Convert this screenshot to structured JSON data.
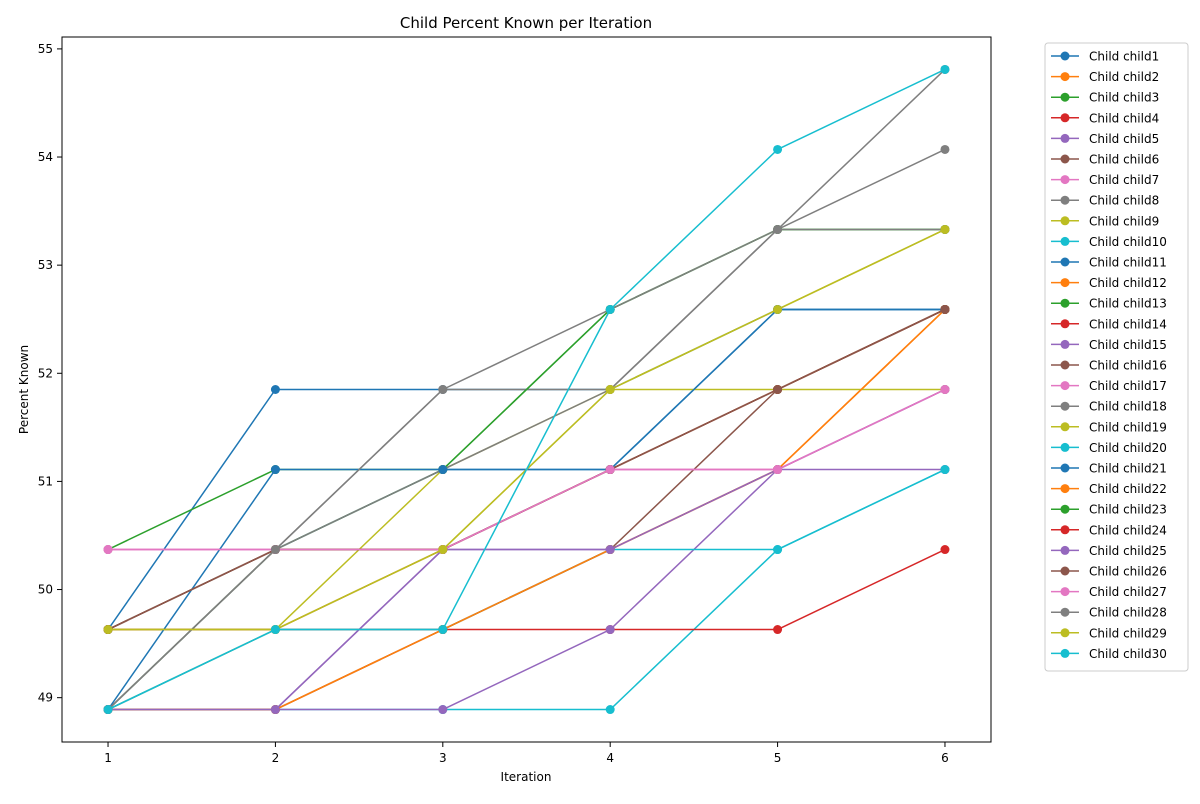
{
  "chart_data": {
    "type": "line",
    "title": "Child Percent Known per Iteration",
    "xlabel": "Iteration",
    "ylabel": "Percent Known",
    "x": [
      1,
      2,
      3,
      4,
      5,
      6
    ],
    "xlim": [
      0.725,
      6.275
    ],
    "ylim": [
      48.59,
      55.11
    ],
    "yticks": [
      49,
      50,
      51,
      52,
      53,
      54,
      55
    ],
    "grid": false,
    "legend_position": "outside-right",
    "marker": "circle",
    "series": [
      {
        "name": "Child child1",
        "color": "#1f77b4",
        "values": [
          49.63,
          51.85,
          51.85,
          51.85,
          52.59,
          52.59
        ]
      },
      {
        "name": "Child child2",
        "color": "#ff7f0e",
        "values": [
          48.89,
          48.89,
          49.63,
          50.37,
          51.11,
          52.59
        ]
      },
      {
        "name": "Child child3",
        "color": "#2ca02c",
        "values": [
          50.37,
          51.11,
          51.11,
          52.59,
          53.33,
          53.33
        ]
      },
      {
        "name": "Child child4",
        "color": "#d62728",
        "values": [
          49.63,
          49.63,
          50.37,
          51.11,
          51.85,
          52.59
        ]
      },
      {
        "name": "Child child5",
        "color": "#9467bd",
        "values": [
          48.89,
          48.89,
          50.37,
          50.37,
          51.11,
          51.85
        ]
      },
      {
        "name": "Child child6",
        "color": "#8c564b",
        "values": [
          49.63,
          50.37,
          50.37,
          51.11,
          51.85,
          52.59
        ]
      },
      {
        "name": "Child child7",
        "color": "#e377c2",
        "values": [
          50.37,
          50.37,
          50.37,
          51.11,
          51.11,
          51.85
        ]
      },
      {
        "name": "Child child8",
        "color": "#7f7f7f",
        "values": [
          48.89,
          50.37,
          51.85,
          51.85,
          53.33,
          54.07
        ]
      },
      {
        "name": "Child child9",
        "color": "#bcbd22",
        "values": [
          49.63,
          49.63,
          51.11,
          51.85,
          52.59,
          53.33
        ]
      },
      {
        "name": "Child child10",
        "color": "#17becf",
        "values": [
          48.89,
          48.89,
          48.89,
          48.89,
          50.37,
          51.11
        ]
      },
      {
        "name": "Child child11",
        "color": "#1f77b4",
        "values": [
          49.63,
          50.37,
          51.11,
          51.11,
          52.59,
          52.59
        ]
      },
      {
        "name": "Child child12",
        "color": "#ff7f0e",
        "values": [
          48.89,
          49.63,
          49.63,
          50.37,
          51.11,
          52.59
        ]
      },
      {
        "name": "Child child13",
        "color": "#2ca02c",
        "values": [
          48.89,
          50.37,
          51.11,
          52.59,
          53.33,
          53.33
        ]
      },
      {
        "name": "Child child14",
        "color": "#d62728",
        "values": [
          49.63,
          49.63,
          49.63,
          49.63,
          49.63,
          50.37
        ]
      },
      {
        "name": "Child child15",
        "color": "#9467bd",
        "values": [
          48.89,
          48.89,
          48.89,
          49.63,
          51.11,
          51.11
        ]
      },
      {
        "name": "Child child16",
        "color": "#8c564b",
        "values": [
          48.89,
          48.89,
          49.63,
          50.37,
          51.85,
          52.59
        ]
      },
      {
        "name": "Child child17",
        "color": "#e377c2",
        "values": [
          50.37,
          50.37,
          50.37,
          51.11,
          51.11,
          51.85
        ]
      },
      {
        "name": "Child child18",
        "color": "#7f7f7f",
        "values": [
          48.89,
          50.37,
          51.11,
          51.85,
          53.33,
          54.81
        ]
      },
      {
        "name": "Child child19",
        "color": "#bcbd22",
        "values": [
          49.63,
          49.63,
          50.37,
          51.85,
          51.85,
          51.85
        ]
      },
      {
        "name": "Child child20",
        "color": "#17becf",
        "values": [
          48.89,
          49.63,
          49.63,
          50.37,
          50.37,
          51.11
        ]
      },
      {
        "name": "Child child21",
        "color": "#1f77b4",
        "values": [
          48.89,
          51.11,
          51.11,
          51.11,
          52.59,
          52.59
        ]
      },
      {
        "name": "Child child22",
        "color": "#ff7f0e",
        "values": [
          48.89,
          48.89,
          49.63,
          50.37,
          51.11,
          52.59
        ]
      },
      {
        "name": "Child child23",
        "color": "#2ca02c",
        "values": [
          49.63,
          50.37,
          50.37,
          51.11,
          51.85,
          52.59
        ]
      },
      {
        "name": "Child child24",
        "color": "#d62728",
        "values": [
          49.63,
          50.37,
          50.37,
          51.11,
          51.85,
          52.59
        ]
      },
      {
        "name": "Child child25",
        "color": "#9467bd",
        "values": [
          48.89,
          48.89,
          50.37,
          50.37,
          51.11,
          51.85
        ]
      },
      {
        "name": "Child child26",
        "color": "#8c564b",
        "values": [
          49.63,
          50.37,
          50.37,
          51.11,
          51.85,
          52.59
        ]
      },
      {
        "name": "Child child27",
        "color": "#e377c2",
        "values": [
          50.37,
          50.37,
          50.37,
          51.11,
          51.11,
          51.85
        ]
      },
      {
        "name": "Child child28",
        "color": "#7f7f7f",
        "values": [
          48.89,
          50.37,
          51.85,
          52.59,
          53.33,
          53.33
        ]
      },
      {
        "name": "Child child29",
        "color": "#bcbd22",
        "values": [
          49.63,
          49.63,
          50.37,
          51.85,
          52.59,
          53.33
        ]
      },
      {
        "name": "Child child30",
        "color": "#17becf",
        "values": [
          48.89,
          49.63,
          49.63,
          52.59,
          54.07,
          54.81
        ]
      }
    ]
  }
}
